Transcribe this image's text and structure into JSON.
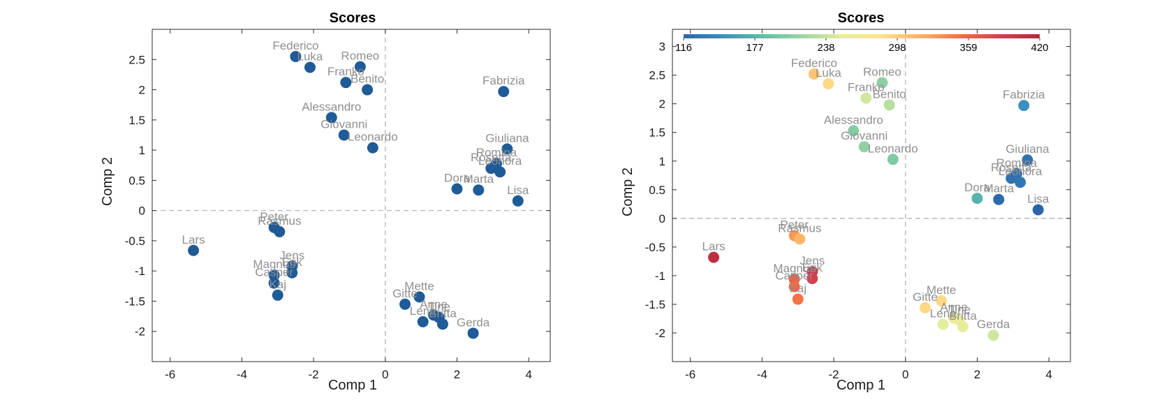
{
  "chart_data": [
    {
      "type": "scatter",
      "title": "Scores",
      "xlabel": "Comp 1",
      "ylabel": "Comp 2",
      "xlim": [
        -6.5,
        4.6
      ],
      "ylim": [
        -2.5,
        3.0
      ],
      "xticks": [
        -6,
        -4,
        -2,
        0,
        2,
        4
      ],
      "yticks": [
        -2,
        -1.5,
        -1,
        -0.5,
        0,
        0.5,
        1,
        1.5,
        2,
        2.5
      ],
      "grid": false,
      "zero_lines": true,
      "marker_color": "#1f5b96",
      "label_color": "#8f8f8f",
      "points": [
        {
          "label": "Federico",
          "x": -2.5,
          "y": 2.55
        },
        {
          "label": "Luka",
          "x": -2.1,
          "y": 2.37
        },
        {
          "label": "Romeo",
          "x": -0.7,
          "y": 2.38
        },
        {
          "label": "Franko",
          "x": -1.1,
          "y": 2.12
        },
        {
          "label": "Benito",
          "x": -0.5,
          "y": 2.0
        },
        {
          "label": "Fabrizia",
          "x": 3.3,
          "y": 1.97
        },
        {
          "label": "Alessandro",
          "x": -1.5,
          "y": 1.54
        },
        {
          "label": "Giovanni",
          "x": -1.15,
          "y": 1.25
        },
        {
          "label": "Leonardo",
          "x": -0.35,
          "y": 1.04
        },
        {
          "label": "Giuliana",
          "x": 3.4,
          "y": 1.02
        },
        {
          "label": "Romina",
          "x": 3.1,
          "y": 0.78
        },
        {
          "label": "Rosetta",
          "x": 2.95,
          "y": 0.7
        },
        {
          "label": "Leonora",
          "x": 3.2,
          "y": 0.64
        },
        {
          "label": "Dora",
          "x": 2.0,
          "y": 0.36
        },
        {
          "label": "Marta",
          "x": 2.6,
          "y": 0.34
        },
        {
          "label": "Lisa",
          "x": 3.7,
          "y": 0.16
        },
        {
          "label": "Peter",
          "x": -3.1,
          "y": -0.28
        },
        {
          "label": "Rasmus",
          "x": -2.95,
          "y": -0.35
        },
        {
          "label": "Lars",
          "x": -5.35,
          "y": -0.66
        },
        {
          "label": "Jens",
          "x": -2.6,
          "y": -0.92
        },
        {
          "label": "Magnus",
          "x": -3.1,
          "y": -1.07
        },
        {
          "label": "Erik",
          "x": -2.6,
          "y": -1.03
        },
        {
          "label": "Casper",
          "x": -3.1,
          "y": -1.2
        },
        {
          "label": "Kaj",
          "x": -3.0,
          "y": -1.4
        },
        {
          "label": "Mette",
          "x": 0.95,
          "y": -1.43
        },
        {
          "label": "Gitte",
          "x": 0.55,
          "y": -1.55
        },
        {
          "label": "Anne",
          "x": 1.35,
          "y": -1.73
        },
        {
          "label": "Lene",
          "x": 1.05,
          "y": -1.84
        },
        {
          "label": "Tine",
          "x": 1.5,
          "y": -1.77
        },
        {
          "label": "Britta",
          "x": 1.6,
          "y": -1.88
        },
        {
          "label": "Gerda",
          "x": 2.45,
          "y": -2.03
        }
      ]
    },
    {
      "type": "scatter",
      "title": "Scores",
      "xlabel": "Comp 1",
      "ylabel": "Comp 2",
      "xlim": [
        -6.5,
        4.6
      ],
      "ylim": [
        -2.5,
        3.3
      ],
      "xticks": [
        -6,
        -4,
        -2,
        0,
        2,
        4
      ],
      "yticks": [
        -2,
        -1.5,
        -1,
        -0.5,
        0,
        0.5,
        1,
        1.5,
        2,
        2.5,
        3
      ],
      "grid": false,
      "zero_lines": true,
      "label_color": "#8f8f8f",
      "colorbar": {
        "placement": "top-inside",
        "min": 116,
        "max": 420,
        "ticks": [
          "116",
          "177",
          "238",
          "298",
          "359",
          "420"
        ],
        "stops": [
          "#2b65a8",
          "#3c8fc0",
          "#5fbfa6",
          "#9cd5a3",
          "#e6ee9b",
          "#fee08b",
          "#fdb165",
          "#f46d43",
          "#d53e4f",
          "#b5283d"
        ]
      },
      "points": [
        {
          "label": "Federico",
          "x": -2.55,
          "y": 2.52,
          "value": 305
        },
        {
          "label": "Luka",
          "x": -2.15,
          "y": 2.35,
          "value": 290
        },
        {
          "label": "Romeo",
          "x": -0.65,
          "y": 2.37,
          "value": 210
        },
        {
          "label": "Franko",
          "x": -1.1,
          "y": 2.1,
          "value": 242
        },
        {
          "label": "Benito",
          "x": -0.45,
          "y": 1.98,
          "value": 230
        },
        {
          "label": "Fabrizia",
          "x": 3.3,
          "y": 1.97,
          "value": 150
        },
        {
          "label": "Alessandro",
          "x": -1.45,
          "y": 1.53,
          "value": 205
        },
        {
          "label": "Giovanni",
          "x": -1.15,
          "y": 1.25,
          "value": 210
        },
        {
          "label": "Leonardo",
          "x": -0.35,
          "y": 1.03,
          "value": 200
        },
        {
          "label": "Giuliana",
          "x": 3.4,
          "y": 1.02,
          "value": 125
        },
        {
          "label": "Romina",
          "x": 3.1,
          "y": 0.78,
          "value": 125
        },
        {
          "label": "Rosetta",
          "x": 2.95,
          "y": 0.7,
          "value": 125
        },
        {
          "label": "Leonora",
          "x": 3.2,
          "y": 0.63,
          "value": 130
        },
        {
          "label": "Dora",
          "x": 2.0,
          "y": 0.35,
          "value": 175
        },
        {
          "label": "Marta",
          "x": 2.6,
          "y": 0.33,
          "value": 120
        },
        {
          "label": "Lisa",
          "x": 3.7,
          "y": 0.15,
          "value": 116
        },
        {
          "label": "Peter",
          "x": -3.1,
          "y": -0.3,
          "value": 330
        },
        {
          "label": "Rasmus",
          "x": -2.95,
          "y": -0.36,
          "value": 315
        },
        {
          "label": "Lars",
          "x": -5.35,
          "y": -0.68,
          "value": 410
        },
        {
          "label": "Jens",
          "x": -2.6,
          "y": -0.93,
          "value": 395
        },
        {
          "label": "Magnus",
          "x": -3.1,
          "y": -1.06,
          "value": 360
        },
        {
          "label": "Erik",
          "x": -2.6,
          "y": -1.05,
          "value": 385
        },
        {
          "label": "Casper",
          "x": -3.1,
          "y": -1.19,
          "value": 355
        },
        {
          "label": "Kaj",
          "x": -3.0,
          "y": -1.41,
          "value": 350
        },
        {
          "label": "Mette",
          "x": 1.0,
          "y": -1.44,
          "value": 290
        },
        {
          "label": "Gitte",
          "x": 0.55,
          "y": -1.56,
          "value": 290
        },
        {
          "label": "Anne",
          "x": 1.35,
          "y": -1.74,
          "value": 265
        },
        {
          "label": "Lene",
          "x": 1.05,
          "y": -1.85,
          "value": 250
        },
        {
          "label": "Tine",
          "x": 1.5,
          "y": -1.78,
          "value": 255
        },
        {
          "label": "Britta",
          "x": 1.6,
          "y": -1.89,
          "value": 250
        },
        {
          "label": "Gerda",
          "x": 2.45,
          "y": -2.04,
          "value": 240
        }
      ]
    }
  ]
}
